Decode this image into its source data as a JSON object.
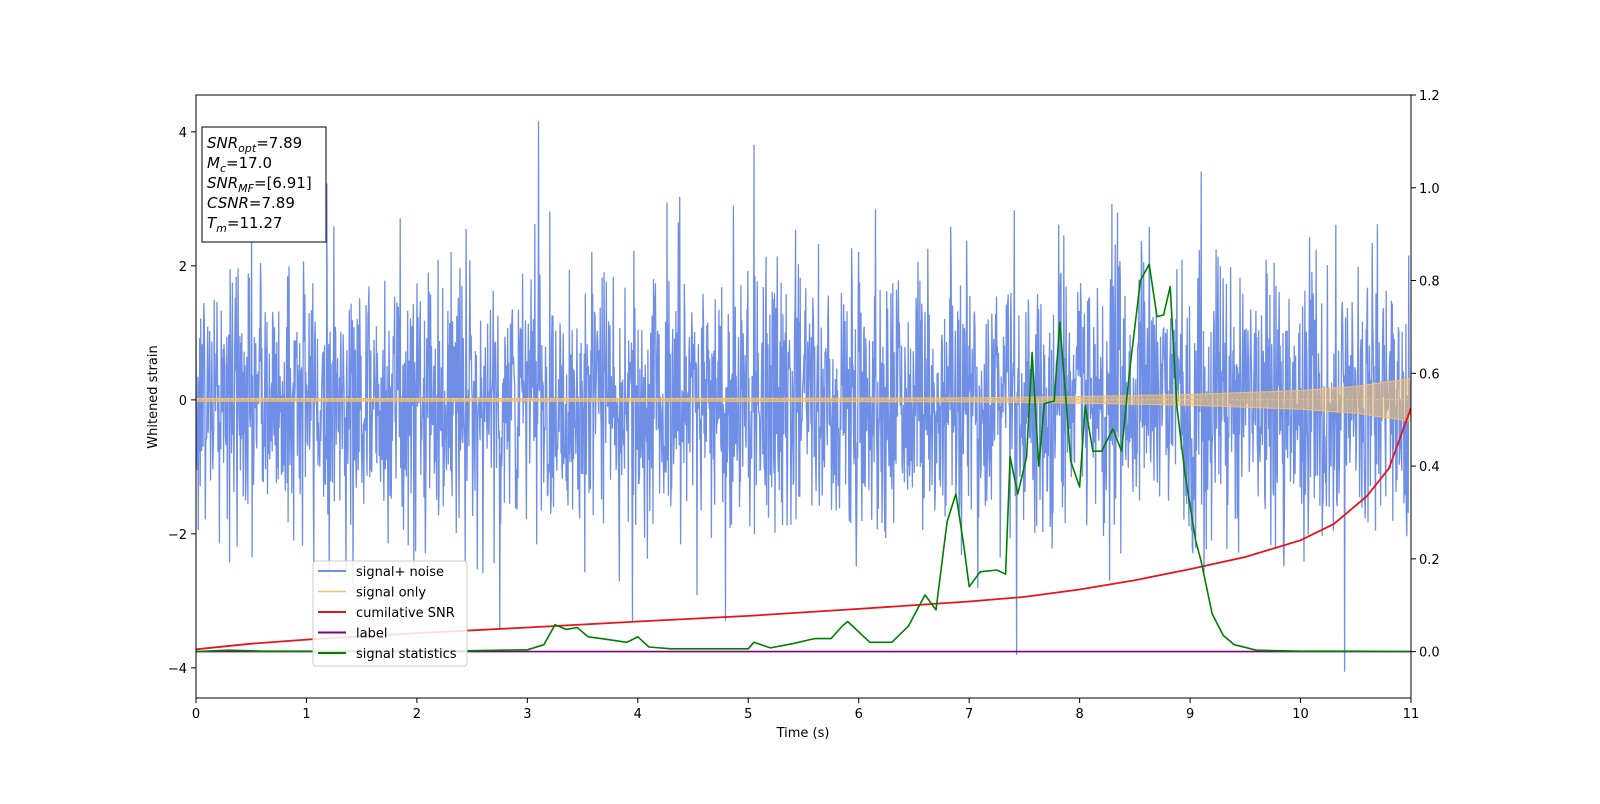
{
  "chart_data": {
    "type": "line",
    "title": "",
    "xlabel": "Time (s)",
    "ylabel": "Whitened strain",
    "y2label": "",
    "xlim": [
      0,
      11
    ],
    "ylim": [
      -4.45,
      4.55
    ],
    "y2lim": [
      -0.1,
      1.2
    ],
    "xticks": [
      0,
      1,
      2,
      3,
      4,
      5,
      6,
      7,
      8,
      9,
      10,
      11
    ],
    "yticks": [
      -4,
      -2,
      0,
      2,
      4
    ],
    "yticklabels": [
      "−4",
      "−2",
      "0",
      "2",
      "4"
    ],
    "y2ticks": [
      0.0,
      0.2,
      0.4,
      0.6,
      0.8,
      1.0,
      1.2
    ],
    "y2ticklabels": [
      "0.0",
      "0.2",
      "0.4",
      "0.6",
      "0.8",
      "1.0",
      "1.2"
    ],
    "grid": false,
    "legend_position": "lower-left",
    "colors": {
      "signal_noise": "#6f8ee6",
      "signal_only": "#f5c16a",
      "cumulative_snr": "#e8141c",
      "label": "#800080",
      "statistics": "#008000"
    },
    "annotation": [
      {
        "base": "SNR",
        "sub": "opt",
        "value": "=7.89"
      },
      {
        "base": "M",
        "sub": "c",
        "value": "=17.0"
      },
      {
        "base": "SNR",
        "sub": "MF",
        "value": "=[6.91]"
      },
      {
        "base": "CSNR",
        "sub": "",
        "value": "=7.89"
      },
      {
        "base": "T",
        "sub": "m",
        "value": "=11.27"
      }
    ],
    "series": [
      {
        "name": "signal+ noise",
        "axis": "left",
        "description_values": "whitened noise plus signal, approx. std 1, range about -3.8 to 4.2 over 0-11 s",
        "peaks": [
          [
            3.1,
            4.15
          ],
          [
            5.05,
            3.8
          ],
          [
            10.4,
            -4.05
          ],
          [
            7.43,
            -3.8
          ],
          [
            2.75,
            -3.4
          ],
          [
            3.95,
            -3.3
          ],
          [
            9.1,
            3.4
          ]
        ]
      },
      {
        "name": "signal only",
        "axis": "left",
        "envelope": {
          "x": [
            0,
            4,
            7,
            8,
            9,
            10,
            10.5,
            11
          ],
          "y": [
            0.02,
            0.02,
            0.03,
            0.05,
            0.08,
            0.14,
            0.2,
            0.32
          ]
        }
      },
      {
        "name": "cumilative SNR",
        "axis": "right",
        "x": [
          0,
          0.5,
          1,
          2,
          3,
          4,
          5,
          6,
          7,
          7.5,
          8,
          8.5,
          9,
          9.5,
          10,
          10.3,
          10.6,
          10.8,
          11
        ],
        "y": [
          0.005,
          0.017,
          0.026,
          0.04,
          0.052,
          0.065,
          0.077,
          0.092,
          0.108,
          0.118,
          0.134,
          0.154,
          0.178,
          0.204,
          0.24,
          0.275,
          0.335,
          0.395,
          0.525
        ]
      },
      {
        "name": "label",
        "axis": "right",
        "x": [
          0,
          11
        ],
        "y": [
          0,
          0
        ]
      },
      {
        "name": "signal statistics",
        "axis": "right",
        "x": [
          0,
          0.3,
          0.6,
          1,
          1.5,
          2,
          2.5,
          3,
          3.15,
          3.25,
          3.35,
          3.45,
          3.55,
          3.7,
          3.9,
          4.0,
          4.1,
          4.3,
          4.6,
          5.0,
          5.05,
          5.2,
          5.4,
          5.6,
          5.75,
          5.85,
          5.9,
          6.1,
          6.3,
          6.45,
          6.6,
          6.7,
          6.8,
          6.88,
          6.95,
          7.0,
          7.1,
          7.25,
          7.33,
          7.37,
          7.44,
          7.52,
          7.57,
          7.63,
          7.68,
          7.77,
          7.82,
          7.92,
          8.0,
          8.05,
          8.12,
          8.2,
          8.3,
          8.38,
          8.45,
          8.55,
          8.63,
          8.7,
          8.76,
          8.82,
          8.88,
          8.95,
          9.05,
          9.1,
          9.2,
          9.3,
          9.4,
          9.6,
          10.0,
          10.5,
          11
        ],
        "y": [
          0.0,
          0.003,
          0.001,
          0.001,
          0.001,
          0.001,
          0.002,
          0.004,
          0.015,
          0.058,
          0.048,
          0.052,
          0.032,
          0.027,
          0.02,
          0.032,
          0.01,
          0.006,
          0.006,
          0.006,
          0.02,
          0.008,
          0.017,
          0.028,
          0.028,
          0.055,
          0.065,
          0.02,
          0.02,
          0.055,
          0.122,
          0.09,
          0.28,
          0.34,
          0.23,
          0.14,
          0.172,
          0.176,
          0.167,
          0.42,
          0.34,
          0.42,
          0.645,
          0.4,
          0.535,
          0.54,
          0.71,
          0.41,
          0.355,
          0.53,
          0.432,
          0.432,
          0.48,
          0.432,
          0.6,
          0.8,
          0.835,
          0.722,
          0.726,
          0.787,
          0.53,
          0.39,
          0.24,
          0.195,
          0.081,
          0.035,
          0.015,
          0.003,
          0.001,
          0.001,
          0.0
        ]
      }
    ]
  }
}
